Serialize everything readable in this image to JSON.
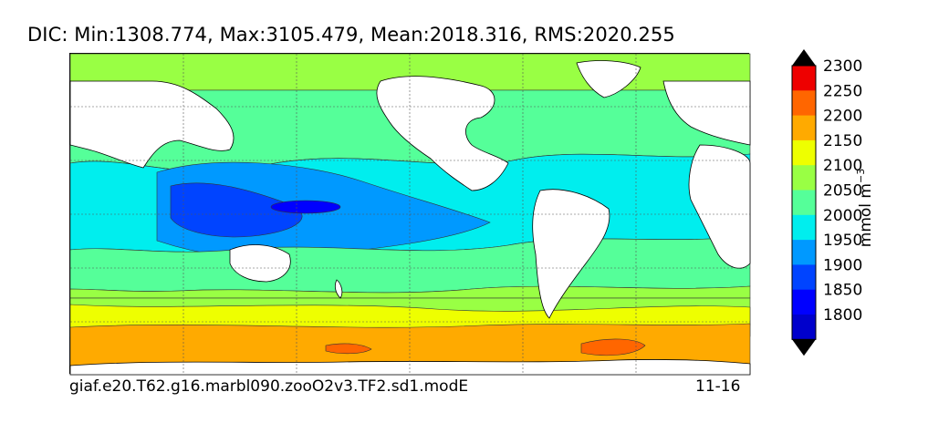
{
  "title": "DIC: Min:1308.774, Max:3105.479, Mean:2018.316, RMS:2020.255",
  "footer": {
    "case_name": "giaf.e20.T62.g16.marbl090.zooO2v3.TF2.sd1.modE",
    "years": "11-16"
  },
  "colorbar": {
    "unit_base": "mmol m",
    "unit_exponent": "−3",
    "levels": [
      {
        "value": 1800,
        "label": "1800",
        "color": "#0000cc"
      },
      {
        "value": 1850,
        "label": "1850",
        "color": "#0000ff"
      },
      {
        "value": 1900,
        "label": "1900",
        "color": "#0044ff"
      },
      {
        "value": 1950,
        "label": "1950",
        "color": "#0099ff"
      },
      {
        "value": 2000,
        "label": "2000",
        "color": "#00eeee"
      },
      {
        "value": 2050,
        "label": "2050",
        "color": "#55ff99"
      },
      {
        "value": 2100,
        "label": "2100",
        "color": "#99ff44"
      },
      {
        "value": 2150,
        "label": "2150",
        "color": "#eeff00"
      },
      {
        "value": 2200,
        "label": "2200",
        "color": "#ffaa00"
      },
      {
        "value": 2250,
        "label": "2250",
        "color": "#ff6600"
      },
      {
        "value": 2300,
        "label": "2300",
        "color": "#ee0000"
      }
    ],
    "under_color": "#000080",
    "over_color": "#800000",
    "extend": "both"
  },
  "map": {
    "projection": "cylindrical",
    "gridlines": "dashed",
    "land_color": "#ffffff"
  }
}
